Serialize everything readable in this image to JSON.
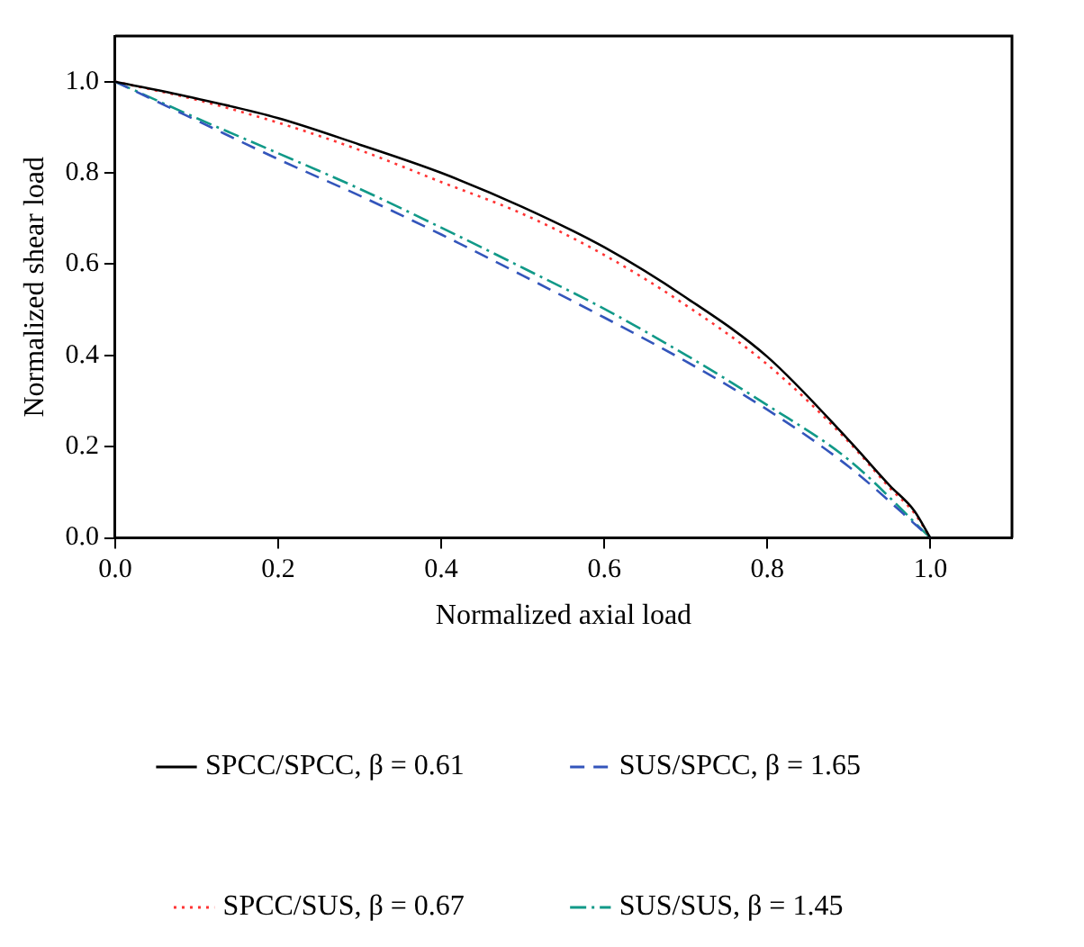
{
  "chart_data": {
    "type": "line",
    "xlabel": "Normalized axial load",
    "ylabel": "Normalized shear load",
    "xlim": [
      0,
      1.1
    ],
    "ylim": [
      0,
      1.1
    ],
    "xticks": [
      {
        "value": 0,
        "label": "0.0"
      },
      0.2,
      0.4,
      0.6,
      0.8,
      {
        "value": 1,
        "label": "1.0"
      }
    ],
    "yticks": [
      {
        "value": 0,
        "label": "0.0"
      },
      0.2,
      0.4,
      0.6,
      0.8,
      {
        "value": 1,
        "label": "1.0"
      }
    ],
    "grid": false,
    "legend": "bottom",
    "marker": "none",
    "series": [
      {
        "name": "SPCC/SPCC, β = 0.61",
        "color": "#000000",
        "line_style": "solid",
        "x": [
          0,
          0.1,
          0.2,
          0.3,
          0.4,
          0.5,
          0.6,
          0.7,
          0.8,
          0.9,
          0.95,
          0.98,
          1
        ],
        "values": [
          1,
          0.963,
          0.92,
          0.862,
          0.8,
          0.725,
          0.637,
          0.527,
          0.397,
          0.214,
          0.115,
          0.06,
          0
        ]
      },
      {
        "name": "SUS/SPCC, β = 1.65",
        "color": "#3355bb",
        "line_style": "dashed",
        "x": [
          0,
          0.1,
          0.2,
          0.3,
          0.4,
          0.5,
          0.6,
          0.7,
          0.8,
          0.9,
          1
        ],
        "values": [
          1,
          0.915,
          0.83,
          0.75,
          0.665,
          0.575,
          0.483,
          0.387,
          0.281,
          0.156,
          0
        ]
      },
      {
        "name": "SPCC/SUS, β = 0.67",
        "color": "#ff3333",
        "line_style": "dotted",
        "x": [
          0,
          0.1,
          0.2,
          0.3,
          0.4,
          0.5,
          0.6,
          0.7,
          0.8,
          0.9,
          0.95,
          0.98,
          1
        ],
        "values": [
          1,
          0.96,
          0.91,
          0.85,
          0.78,
          0.71,
          0.62,
          0.51,
          0.38,
          0.21,
          0.11,
          0.055,
          0
        ]
      },
      {
        "name": "SUS/SUS, β = 1.45",
        "color": "#119988",
        "line_style": "dashdot",
        "x": [
          0,
          0.1,
          0.2,
          0.3,
          0.4,
          0.5,
          0.6,
          0.7,
          0.8,
          0.9,
          1
        ],
        "values": [
          1,
          0.92,
          0.843,
          0.765,
          0.68,
          0.592,
          0.502,
          0.401,
          0.291,
          0.171,
          0
        ]
      }
    ]
  }
}
